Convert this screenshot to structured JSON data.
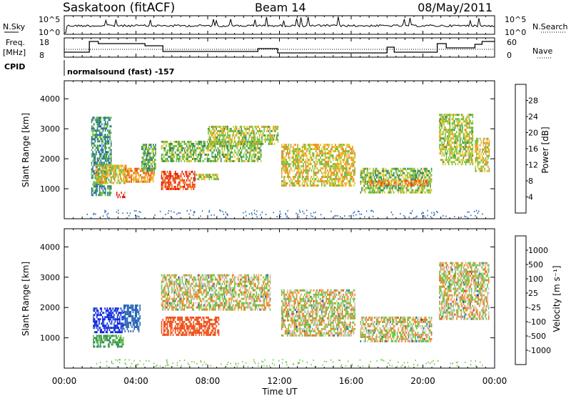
{
  "header": {
    "station": "Saskatoon (fitACF)",
    "beam": "Beam 14",
    "date": "08/May/2011"
  },
  "noise_panel": {
    "left_label": "N.Sky",
    "right_label": "N.Search",
    "left_ticks": [
      "10^5",
      "10^0"
    ],
    "right_ticks": [
      "10^5",
      "10^0"
    ]
  },
  "freq_panel": {
    "left_label_1": "Freq.",
    "left_label_2": "[MHz]",
    "right_label": "Nave",
    "left_ticks": [
      "18",
      "8"
    ],
    "right_ticks": [
      "60",
      "0"
    ]
  },
  "cpid": {
    "label": "CPID",
    "text": "normalsound (fast) -157"
  },
  "time_axis": {
    "xlabel": "Time UT",
    "ticks": [
      "00:00",
      "04:00",
      "08:00",
      "12:00",
      "16:00",
      "20:00",
      "00:00"
    ]
  },
  "colors": {
    "power_scale": [
      "#0a1ee6",
      "#1f5fb4",
      "#2e8b57",
      "#6abf3a",
      "#e6c22a",
      "#f08a1e",
      "#ee4b16",
      "#e81010"
    ],
    "velocity_scale": [
      "#e61010",
      "#f04e16",
      "#f07c22",
      "#f0a040",
      "#c8c8c8",
      "#c8c8c8",
      "#66c43a",
      "#2e8b57",
      "#2a66b8",
      "#0a1ee6"
    ]
  },
  "chart_data": [
    {
      "type": "heatmap",
      "name": "power",
      "xlabel": "Time UT",
      "ylabel": "Slant Range [km]",
      "xlim_hours": [
        0,
        24
      ],
      "ylim_km": [
        0,
        4600
      ],
      "yticks": [
        "1000",
        "2000",
        "3000",
        "4000"
      ],
      "colorbar_label": "Power [dB]",
      "colorbar_ticks": [
        "4",
        "8",
        "12",
        "16",
        "20",
        "24",
        "28"
      ],
      "colorbar_range": [
        0,
        32
      ],
      "regions": [
        {
          "t0": 1.5,
          "t1": 2.6,
          "r0": 800,
          "r1": 3400,
          "value": 10
        },
        {
          "t0": 1.7,
          "t1": 3.5,
          "r0": 1200,
          "r1": 1800,
          "value": 18
        },
        {
          "t0": 2.9,
          "t1": 3.4,
          "r0": 700,
          "r1": 900,
          "value": 28
        },
        {
          "t0": 3.4,
          "t1": 5.0,
          "r0": 1250,
          "r1": 1700,
          "value": 22
        },
        {
          "t0": 4.3,
          "t1": 5.1,
          "r0": 1600,
          "r1": 2500,
          "value": 12
        },
        {
          "t0": 5.4,
          "t1": 7.3,
          "r0": 1000,
          "r1": 1600,
          "value": 27
        },
        {
          "t0": 5.4,
          "t1": 11.0,
          "r0": 1900,
          "r1": 2600,
          "value": 14
        },
        {
          "t0": 7.3,
          "t1": 8.6,
          "r0": 1300,
          "r1": 1500,
          "value": 16
        },
        {
          "t0": 8.0,
          "t1": 11.9,
          "r0": 2500,
          "r1": 3100,
          "value": 16
        },
        {
          "t0": 12.1,
          "t1": 16.2,
          "r0": 1100,
          "r1": 2500,
          "value": 18
        },
        {
          "t0": 16.5,
          "t1": 20.5,
          "r0": 900,
          "r1": 1700,
          "value": 14
        },
        {
          "t0": 17.0,
          "t1": 20.3,
          "r0": 1100,
          "r1": 1300,
          "value": 22
        },
        {
          "t0": 20.9,
          "t1": 22.8,
          "r0": 1800,
          "r1": 3500,
          "value": 16
        },
        {
          "t0": 22.9,
          "t1": 23.7,
          "r0": 1600,
          "r1": 2700,
          "value": 18
        }
      ]
    },
    {
      "type": "heatmap",
      "name": "velocity",
      "xlabel": "Time UT",
      "ylabel": "Slant Range [km]",
      "xlim_hours": [
        0,
        24
      ],
      "ylim_km": [
        0,
        4600
      ],
      "yticks": [
        "1000",
        "2000",
        "3000",
        "4000"
      ],
      "colorbar_label": "Velocity [m s⁻¹]",
      "colorbar_ticks": [
        "1000",
        "500",
        "100",
        "25",
        "-25",
        "-100",
        "-500",
        "-1000"
      ],
      "regions": [
        {
          "t0": 1.6,
          "t1": 3.3,
          "r0": 1200,
          "r1": 2000,
          "value": 800
        },
        {
          "t0": 1.6,
          "t1": 3.3,
          "r0": 700,
          "r1": 1100,
          "value": 120
        },
        {
          "t0": 3.3,
          "t1": 4.2,
          "r0": 1200,
          "r1": 2100,
          "value": 600
        },
        {
          "t0": 5.4,
          "t1": 8.6,
          "r0": 1100,
          "r1": 1700,
          "value": -500
        },
        {
          "t0": 5.4,
          "t1": 11.5,
          "r0": 1900,
          "r1": 3100,
          "value": 0
        },
        {
          "t0": 12.1,
          "t1": 16.2,
          "r0": 1100,
          "r1": 2600,
          "value": 0
        },
        {
          "t0": 16.5,
          "t1": 20.5,
          "r0": 900,
          "r1": 1700,
          "value": 0
        },
        {
          "t0": 20.9,
          "t1": 23.7,
          "r0": 1600,
          "r1": 3500,
          "value": 0
        }
      ]
    }
  ]
}
